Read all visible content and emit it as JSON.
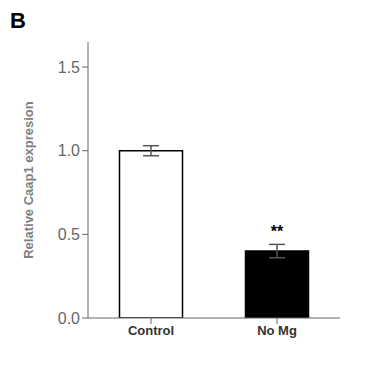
{
  "chart_data": {
    "type": "bar",
    "categories": [
      "Control",
      "No Mg"
    ],
    "values": [
      1.0,
      0.4
    ],
    "errors": [
      0.03,
      0.04
    ],
    "colors": [
      "#ffffff",
      "#000000"
    ],
    "ylabel": "Relative Caap1 expresion",
    "ylim": [
      0,
      1.65
    ],
    "yticks": [
      {
        "value": 0.0,
        "label": "0.0"
      },
      0.5,
      {
        "value": 1.0,
        "label": "1.0"
      },
      1.5
    ],
    "annotations": [
      {
        "text": "B"
      },
      {
        "text": "**",
        "category": "No Mg"
      }
    ]
  }
}
